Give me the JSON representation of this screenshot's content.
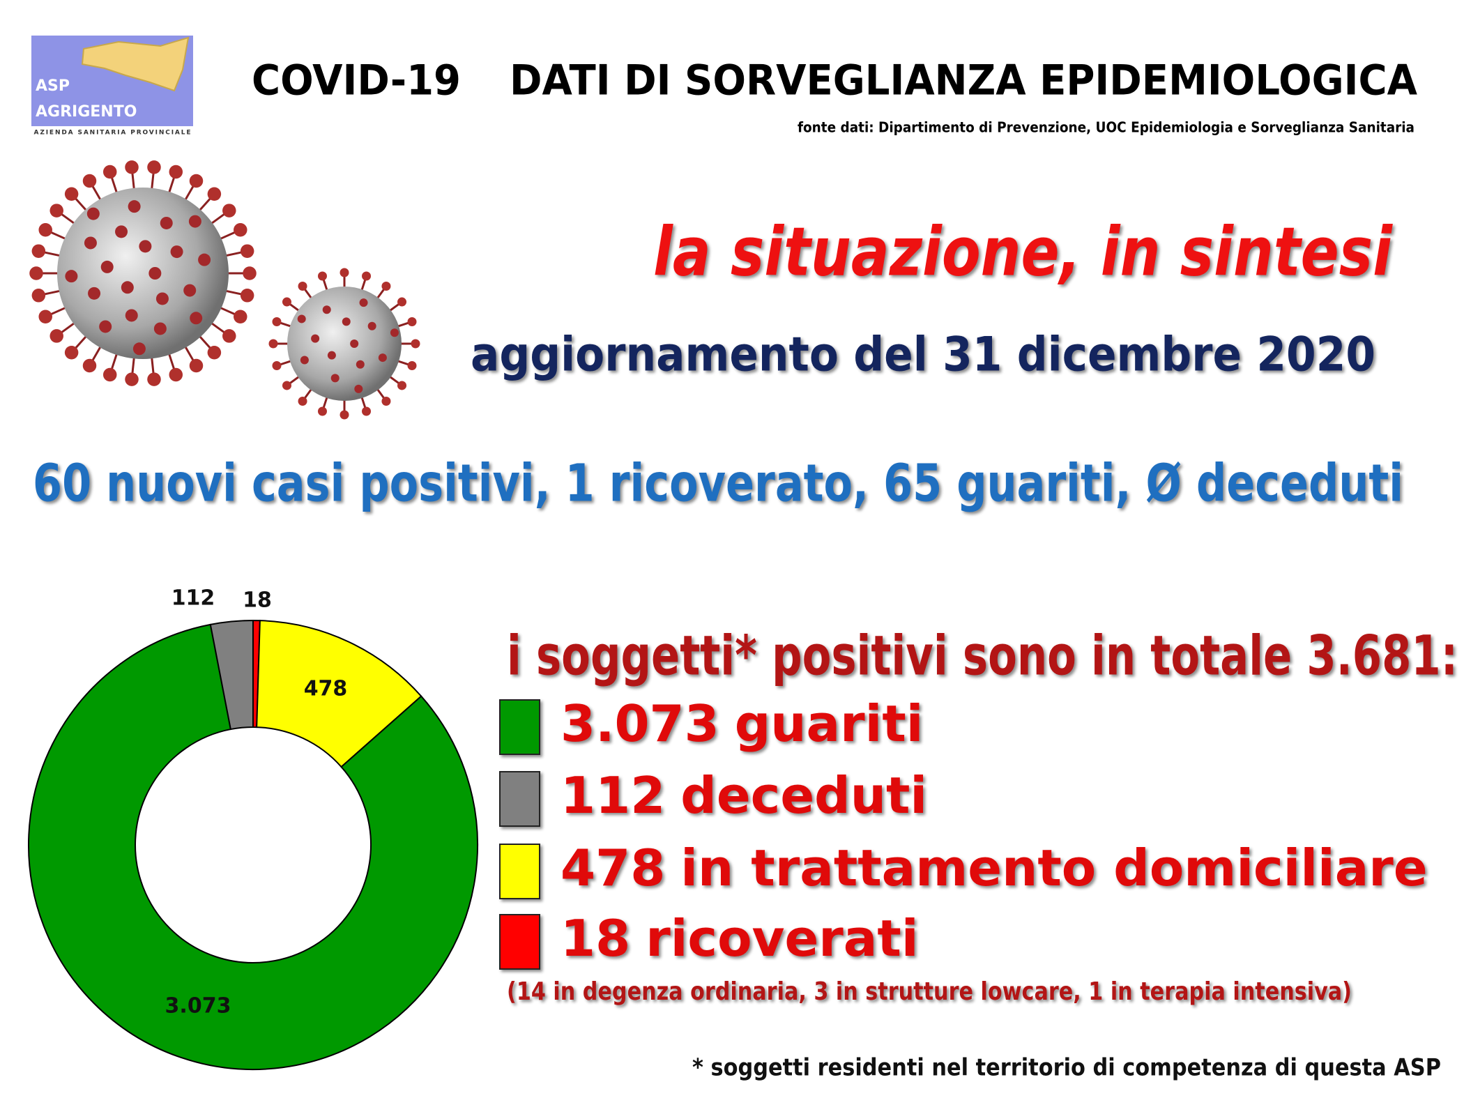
{
  "header": {
    "logo_line1": "ASP",
    "logo_line2": "AGRIGENTO",
    "logo_subtitle": "AZIENDA SANITARIA PROVINCIALE",
    "title_left": "COVID-19",
    "title_right": "DATI DI SORVEGLIANZA EPIDEMIOLOGICA",
    "source": "fonte dati: Dipartimento di Prevenzione, UOC Epidemiologia e Sorveglianza Sanitaria"
  },
  "summary": {
    "headline": "la situazione, in sintesi",
    "update": "aggiornamento del 31 dicembre 2020",
    "news": "60 nuovi casi positivi, 1 ricoverato, 65 guariti, Ø deceduti"
  },
  "chart_data": {
    "type": "donut",
    "title": "i soggetti* positivi sono in totale 3.681:",
    "categories": [
      "ricoverati",
      "in trattamento domiciliare",
      "guariti",
      "deceduti"
    ],
    "values": [
      18,
      478,
      3073,
      112
    ],
    "value_labels": [
      "18",
      "478",
      "3.073",
      "112"
    ],
    "colors": [
      "#ff0000",
      "#ffff00",
      "#009900",
      "#808080"
    ],
    "note": "(14 in degenza ordinaria, 3 in strutture lowcare, 1 in terapia intensiva)",
    "footnote": "* soggetti residenti nel territorio di competenza di questa ASP"
  }
}
